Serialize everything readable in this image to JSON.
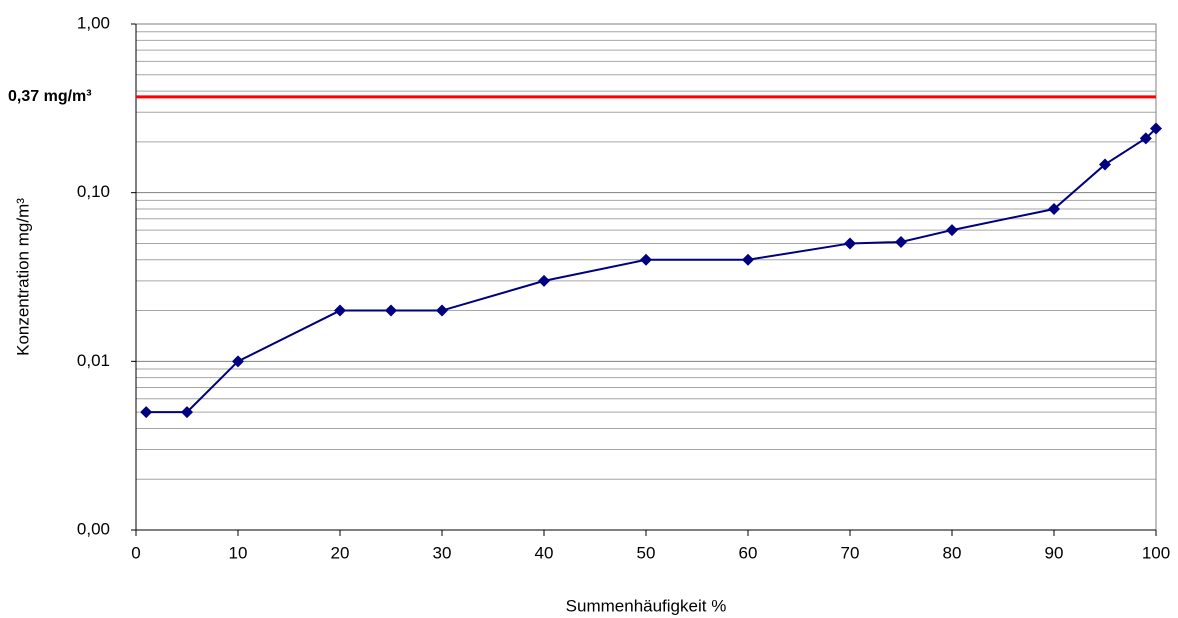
{
  "chart_data": {
    "type": "line",
    "x_label": "Summenhäufigkeit %",
    "y_label": "Konzentration mg/m³",
    "x": [
      1,
      5,
      10,
      20,
      25,
      30,
      40,
      50,
      60,
      70,
      75,
      80,
      90,
      95,
      99,
      100
    ],
    "series": [
      {
        "name": "Konzentration",
        "color": "#000080",
        "values": [
          0.005,
          0.005,
          0.01,
          0.02,
          0.02,
          0.02,
          0.03,
          0.04,
          0.04,
          0.05,
          0.051,
          0.06,
          0.08,
          0.147,
          0.21,
          0.24
        ]
      }
    ],
    "xlim": [
      0,
      100
    ],
    "xticks": [
      0,
      10,
      20,
      30,
      40,
      50,
      60,
      70,
      80,
      90,
      100
    ],
    "ylim": [
      0.001,
      1
    ],
    "yscale": "log",
    "yticks": [
      {
        "value": 0.001,
        "label": "0,00"
      },
      {
        "value": 0.01,
        "label": "0,01"
      },
      {
        "value": 0.1,
        "label": "0,10"
      },
      {
        "value": 1,
        "label": "1,00"
      }
    ],
    "yminorticks": [
      0.002,
      0.003,
      0.004,
      0.005,
      0.006,
      0.007,
      0.008,
      0.009,
      0.02,
      0.03,
      0.04,
      0.05,
      0.06,
      0.07,
      0.08,
      0.09,
      0.2,
      0.3,
      0.4,
      0.5,
      0.6,
      0.7,
      0.8,
      0.9
    ],
    "grid": true,
    "reference_line": {
      "value": 0.37,
      "label": "0,37 mg/m³",
      "color": "#ff0000"
    }
  }
}
